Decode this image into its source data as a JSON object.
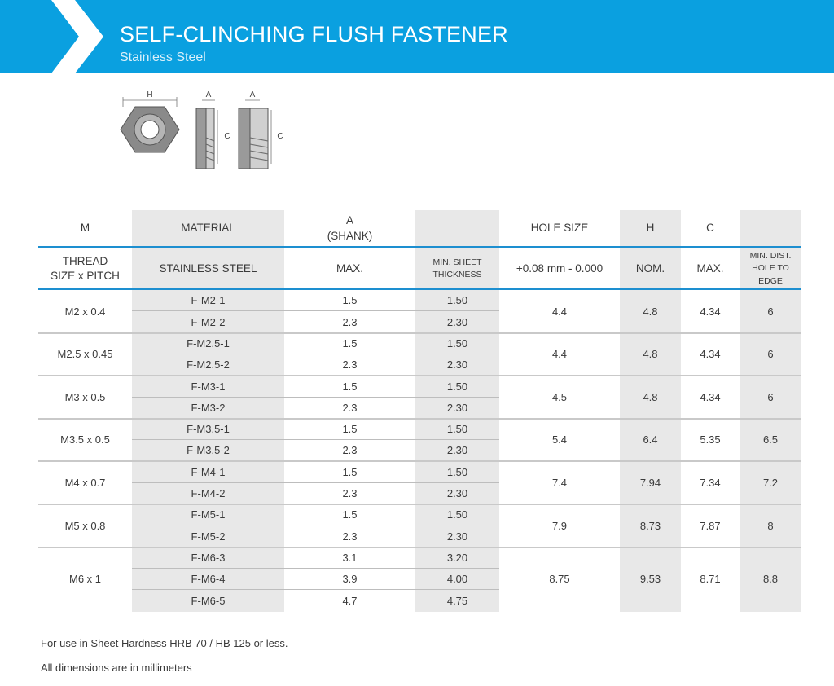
{
  "header": {
    "title": "SELF-CLINCHING FLUSH FASTENER",
    "subtitle": "Stainless Steel",
    "color": "#0aa0e0"
  },
  "diagram_labels": {
    "h": "H",
    "a": "A",
    "c": "C"
  },
  "table": {
    "head1": [
      "M",
      "MATERIAL",
      "A\n(SHANK)",
      "",
      "HOLE SIZE",
      "H",
      "C",
      ""
    ],
    "head2": [
      "THREAD\nSIZE x PITCH",
      "STAINLESS STEEL",
      "MAX.",
      "MIN. SHEET\nTHICKNESS",
      "+0.08 mm - 0.000",
      "NOM.",
      "MAX.",
      "MIN. DIST.\nHOLE TO\nEDGE"
    ],
    "groups": [
      {
        "thread": "M2 x 0.4",
        "hole": "4.4",
        "h": "4.8",
        "c": "4.34",
        "edge": "6",
        "rows": [
          {
            "part": "F-M2-1",
            "a": "1.5",
            "sheet": "1.50"
          },
          {
            "part": "F-M2-2",
            "a": "2.3",
            "sheet": "2.30"
          }
        ]
      },
      {
        "thread": "M2.5 x 0.45",
        "hole": "4.4",
        "h": "4.8",
        "c": "4.34",
        "edge": "6",
        "rows": [
          {
            "part": "F-M2.5-1",
            "a": "1.5",
            "sheet": "1.50"
          },
          {
            "part": "F-M2.5-2",
            "a": "2.3",
            "sheet": "2.30"
          }
        ]
      },
      {
        "thread": "M3 x 0.5",
        "hole": "4.5",
        "h": "4.8",
        "c": "4.34",
        "edge": "6",
        "rows": [
          {
            "part": "F-M3-1",
            "a": "1.5",
            "sheet": "1.50"
          },
          {
            "part": "F-M3-2",
            "a": "2.3",
            "sheet": "2.30"
          }
        ]
      },
      {
        "thread": "M3.5 x 0.5",
        "hole": "5.4",
        "h": "6.4",
        "c": "5.35",
        "edge": "6.5",
        "rows": [
          {
            "part": "F-M3.5-1",
            "a": "1.5",
            "sheet": "1.50"
          },
          {
            "part": "F-M3.5-2",
            "a": "2.3",
            "sheet": "2.30"
          }
        ]
      },
      {
        "thread": "M4 x 0.7",
        "hole": "7.4",
        "h": "7.94",
        "c": "7.34",
        "edge": "7.2",
        "rows": [
          {
            "part": "F-M4-1",
            "a": "1.5",
            "sheet": "1.50"
          },
          {
            "part": "F-M4-2",
            "a": "2.3",
            "sheet": "2.30"
          }
        ]
      },
      {
        "thread": "M5 x 0.8",
        "hole": "7.9",
        "h": "8.73",
        "c": "7.87",
        "edge": "8",
        "rows": [
          {
            "part": "F-M5-1",
            "a": "1.5",
            "sheet": "1.50"
          },
          {
            "part": "F-M5-2",
            "a": "2.3",
            "sheet": "2.30"
          }
        ]
      },
      {
        "thread": "M6 x 1",
        "hole": "8.75",
        "h": "9.53",
        "c": "8.71",
        "edge": "8.8",
        "rows": [
          {
            "part": "F-M6-3",
            "a": "3.1",
            "sheet": "3.20"
          },
          {
            "part": "F-M6-4",
            "a": "3.9",
            "sheet": "4.00"
          },
          {
            "part": "F-M6-5",
            "a": "4.7",
            "sheet": "4.75"
          }
        ]
      }
    ]
  },
  "footnotes": [
    "For use in Sheet Hardness HRB 70 / HB 125 or less.",
    "All dimensions are in millimeters"
  ]
}
